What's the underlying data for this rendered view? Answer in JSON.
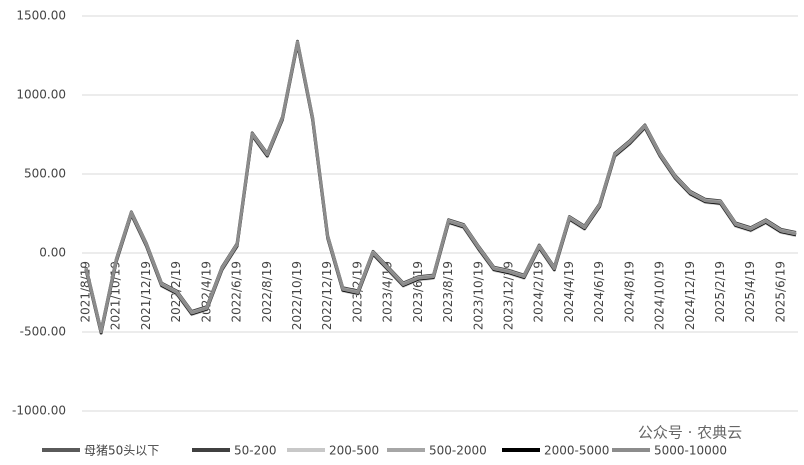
{
  "chart_data": {
    "type": "line",
    "categories": [
      "2021/8/19",
      null,
      "2021/10/19",
      null,
      "2021/12/19",
      null,
      "2022/2/19",
      null,
      "2022/4/19",
      null,
      "2022/6/19",
      null,
      "2022/8/19",
      null,
      "2022/10/19",
      null,
      "2022/12/19",
      null,
      "2023/2/19",
      null,
      "2023/4/19",
      null,
      "2023/6/19",
      null,
      "2023/8/19",
      null,
      "2023/10/19",
      null,
      "2023/12/19",
      null,
      "2024/2/19",
      null,
      "2024/4/19",
      null,
      "2024/6/19",
      null,
      "2024/8/19",
      null,
      "2024/10/19",
      null,
      "2024/12/19",
      null,
      "2025/2/19",
      null,
      "2025/4/19",
      null,
      "2025/6/19",
      null
    ],
    "series": [
      {
        "name": "母猪50头以下",
        "color": "#5a5a5a",
        "values": [
          -100,
          -500,
          -50,
          250,
          50,
          -200,
          -250,
          -380,
          -350,
          -100,
          50,
          750,
          620,
          850,
          1330,
          850,
          100,
          -230,
          -250,
          0,
          -100,
          -200,
          -160,
          -150,
          200,
          170,
          30,
          -100,
          -120,
          -150,
          40,
          -100,
          220,
          160,
          300,
          620,
          700,
          800,
          620,
          480,
          380,
          330,
          320,
          180,
          150,
          200,
          140,
          120
        ]
      },
      {
        "name": "50-200",
        "color": "#404040",
        "values": [
          -90,
          -490,
          -40,
          260,
          60,
          -190,
          -240,
          -370,
          -340,
          -90,
          60,
          760,
          630,
          860,
          1340,
          860,
          110,
          -220,
          -240,
          10,
          -90,
          -190,
          -150,
          -140,
          210,
          180,
          40,
          -90,
          -110,
          -140,
          50,
          -90,
          230,
          170,
          310,
          630,
          710,
          810,
          630,
          490,
          390,
          340,
          330,
          190,
          160,
          210,
          150,
          130
        ]
      },
      {
        "name": "200-500",
        "color": "#c8c8c8",
        "values": [
          -110,
          -510,
          -60,
          240,
          40,
          -210,
          -260,
          -390,
          -360,
          -110,
          40,
          740,
          610,
          840,
          1320,
          840,
          90,
          -240,
          -260,
          -10,
          -110,
          -210,
          -170,
          -160,
          190,
          160,
          20,
          -110,
          -130,
          -160,
          30,
          -110,
          210,
          150,
          290,
          610,
          690,
          790,
          610,
          470,
          370,
          320,
          310,
          170,
          140,
          190,
          130,
          110
        ]
      },
      {
        "name": "500-2000",
        "color": "#a6a6a6",
        "values": [
          -95,
          -495,
          -45,
          255,
          55,
          -195,
          -245,
          -375,
          -345,
          -95,
          55,
          755,
          625,
          855,
          1335,
          855,
          105,
          -225,
          -245,
          5,
          -95,
          -195,
          -155,
          -145,
          205,
          175,
          35,
          -95,
          -115,
          -145,
          45,
          -95,
          225,
          165,
          305,
          625,
          705,
          805,
          625,
          485,
          385,
          335,
          325,
          185,
          155,
          205,
          145,
          125
        ]
      },
      {
        "name": "2000-5000",
        "color": "#000000",
        "values": [
          -105,
          -505,
          -55,
          245,
          45,
          -205,
          -255,
          -385,
          -355,
          -105,
          45,
          745,
          615,
          845,
          1325,
          845,
          95,
          -235,
          -255,
          -5,
          -105,
          -205,
          -165,
          -155,
          195,
          165,
          25,
          -105,
          -125,
          -155,
          35,
          -105,
          215,
          155,
          295,
          615,
          695,
          795,
          615,
          475,
          375,
          325,
          315,
          175,
          145,
          195,
          135,
          115
        ]
      },
      {
        "name": "5000-10000",
        "color": "#8c8c8c",
        "values": [
          -100,
          -500,
          -50,
          250,
          50,
          -200,
          -250,
          -380,
          -350,
          -100,
          50,
          750,
          620,
          850,
          1330,
          850,
          100,
          -230,
          -250,
          0,
          -100,
          -200,
          -160,
          -150,
          200,
          170,
          30,
          -100,
          -120,
          -150,
          40,
          -100,
          220,
          160,
          300,
          620,
          700,
          800,
          620,
          480,
          380,
          330,
          320,
          180,
          150,
          200,
          140,
          120
        ]
      }
    ],
    "ylim": [
      -1000,
      1500
    ],
    "yticks": [
      {
        "value": -1000,
        "label": "-1000.00"
      },
      {
        "value": -500,
        "label": "-500.00"
      },
      {
        "value": 0,
        "label": "0.00"
      },
      {
        "value": 500,
        "label": "500.00"
      },
      {
        "value": 1000,
        "label": "1000.00"
      },
      {
        "value": 1500,
        "label": "1500.00"
      }
    ],
    "grid": true,
    "legend": "bottom",
    "annotation": "公众号 · 农典云"
  }
}
